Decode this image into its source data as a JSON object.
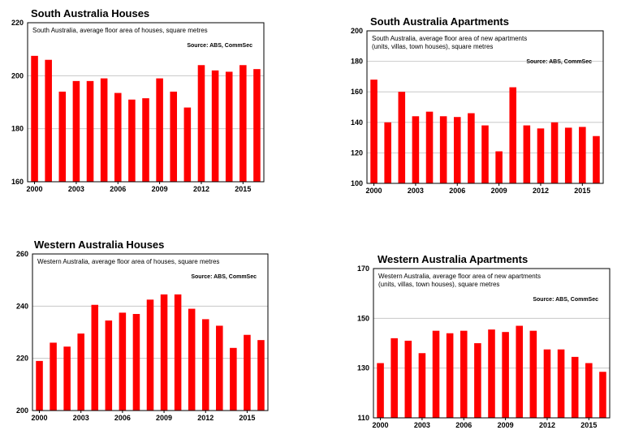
{
  "colors": {
    "bar": "#ff0000",
    "grid": "#bfbfbf",
    "frame": "#000000"
  },
  "chart_data": [
    {
      "id": "sa-houses",
      "type": "bar",
      "title": "South Australia Houses",
      "description": [
        "South Australia, average floor area of houses, square metres"
      ],
      "source": "Source: ABS, CommSec",
      "categories": [
        2000,
        2001,
        2002,
        2003,
        2004,
        2005,
        2006,
        2007,
        2008,
        2009,
        2010,
        2011,
        2012,
        2013,
        2014,
        2015,
        2016
      ],
      "x_tick_labels": [
        "2000",
        "2003",
        "2006",
        "2009",
        "2012",
        "2015"
      ],
      "values": [
        207.5,
        206,
        194,
        198,
        198,
        199,
        193.5,
        191,
        191.5,
        199,
        194,
        188,
        204,
        202,
        201.5,
        204,
        202.5
      ],
      "ylim": [
        160,
        220
      ],
      "yticks": [
        160,
        180,
        200,
        220
      ],
      "grid": true
    },
    {
      "id": "sa-apartments",
      "type": "bar",
      "title": "South Australia Apartments",
      "description": [
        "South Australia, average floor area of new apartments",
        "(units, villas, town houses), square metres"
      ],
      "source": "Source: ABS, CommSec",
      "categories": [
        2000,
        2001,
        2002,
        2003,
        2004,
        2005,
        2006,
        2007,
        2008,
        2009,
        2010,
        2011,
        2012,
        2013,
        2014,
        2015,
        2016
      ],
      "x_tick_labels": [
        "2000",
        "2003",
        "2006",
        "2009",
        "2012",
        "2015"
      ],
      "values": [
        168,
        140,
        160,
        144,
        147,
        144,
        143.5,
        146,
        138,
        121,
        163,
        138,
        136,
        140,
        136.5,
        137,
        131
      ],
      "ylim": [
        100,
        200
      ],
      "yticks": [
        100,
        120,
        140,
        160,
        180,
        200
      ],
      "grid": true
    },
    {
      "id": "wa-houses",
      "type": "bar",
      "title": "Western Australia Houses",
      "description": [
        "Western Australia, average floor area of houses, square metres"
      ],
      "source": "Source: ABS, CommSec",
      "categories": [
        2000,
        2001,
        2002,
        2003,
        2004,
        2005,
        2006,
        2007,
        2008,
        2009,
        2010,
        2011,
        2012,
        2013,
        2014,
        2015,
        2016
      ],
      "x_tick_labels": [
        "2000",
        "2003",
        "2006",
        "2009",
        "2012",
        "2015"
      ],
      "values": [
        219,
        226,
        224.5,
        229.5,
        240.5,
        234.5,
        237.5,
        237,
        242.5,
        244.5,
        244.5,
        239,
        235,
        232.5,
        224,
        229,
        227
      ],
      "ylim": [
        200,
        260
      ],
      "yticks": [
        200,
        220,
        240,
        260
      ],
      "grid": true
    },
    {
      "id": "wa-apartments",
      "type": "bar",
      "title": "Western Australia Apartments",
      "description": [
        "Western Australia, average floor area of new apartments",
        "(units, villas, town houses), square metres"
      ],
      "source": "Source: ABS, CommSec",
      "categories": [
        2000,
        2001,
        2002,
        2003,
        2004,
        2005,
        2006,
        2007,
        2008,
        2009,
        2010,
        2011,
        2012,
        2013,
        2014,
        2015,
        2016
      ],
      "x_tick_labels": [
        "2000",
        "2003",
        "2006",
        "2009",
        "2012",
        "2015"
      ],
      "values": [
        132,
        142,
        141,
        136,
        145,
        144,
        145,
        140,
        145.5,
        144.5,
        147,
        145,
        137.5,
        137.5,
        134.5,
        132,
        128.5
      ],
      "ylim": [
        110,
        170
      ],
      "yticks": [
        110,
        130,
        150,
        170
      ],
      "grid": true
    }
  ]
}
